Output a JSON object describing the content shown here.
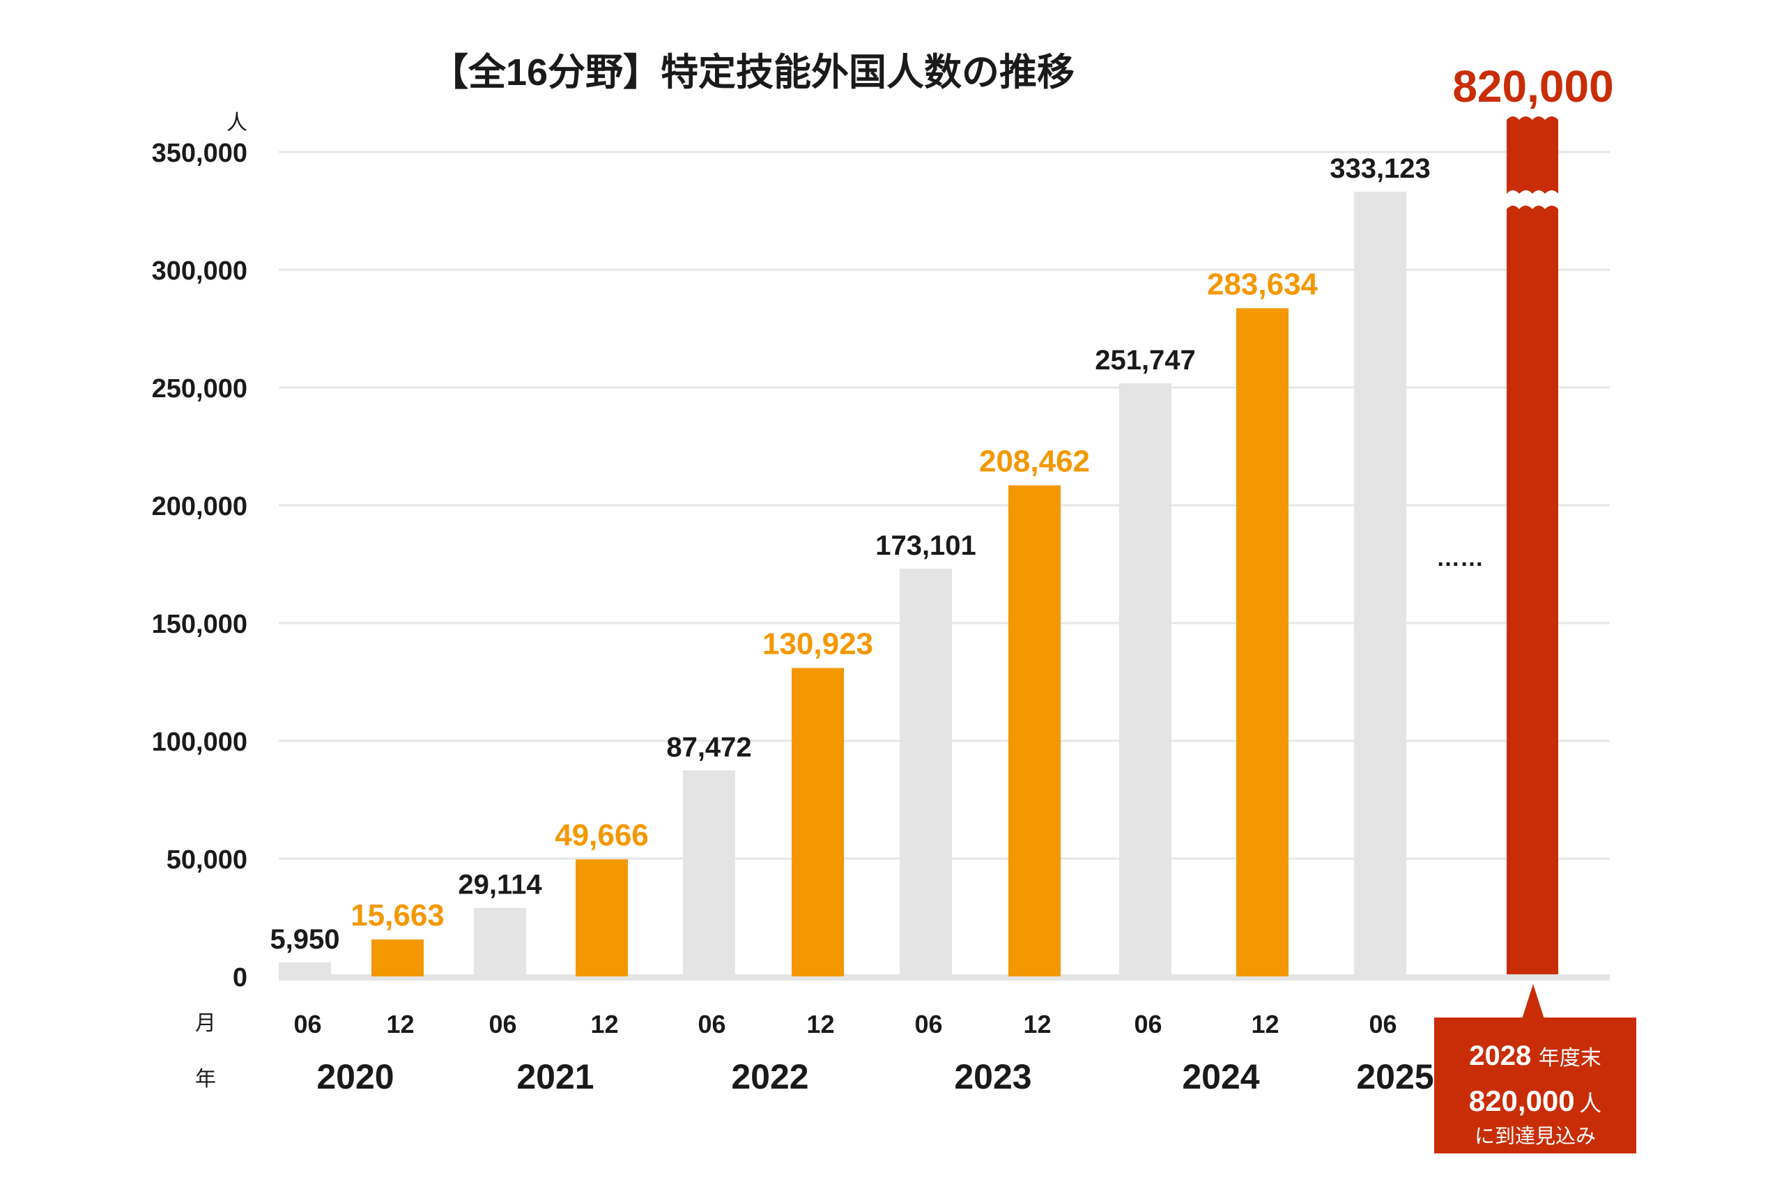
{
  "chart_data": {
    "type": "bar",
    "title": "【全16分野】特定技能外国人数の推移",
    "ylabel": "人",
    "ylim": [
      0,
      350000
    ],
    "yticks": [
      0,
      50000,
      100000,
      150000,
      200000,
      250000,
      300000,
      350000
    ],
    "ytick_labels": [
      "0",
      "50,000",
      "100,000",
      "150,000",
      "200,000",
      "250,000",
      "300,000",
      "350,000"
    ],
    "grid": true,
    "month_axis_label": "月",
    "year_axis_label": "年",
    "categories": [
      "2020-06",
      "2020-12",
      "2021-06",
      "2021-12",
      "2022-06",
      "2022-12",
      "2023-06",
      "2023-12",
      "2024-06",
      "2024-12",
      "2025-06"
    ],
    "months": [
      "06",
      "12",
      "06",
      "12",
      "06",
      "12",
      "06",
      "12",
      "06",
      "12",
      "06"
    ],
    "years": [
      "2020",
      "2021",
      "2022",
      "2023",
      "2024",
      "2025"
    ],
    "values": [
      5950,
      15663,
      29114,
      49666,
      87472,
      130923,
      173101,
      208462,
      251747,
      283634,
      333123
    ],
    "value_labels": [
      "5,950",
      "15,663",
      "29,114",
      "49,666",
      "87,472",
      "130,923",
      "173,101",
      "208,462",
      "251,747",
      "283,634",
      "333,123"
    ],
    "series_colors": {
      "june": "#e4e4e4",
      "december": "#f39800",
      "projection": "#c92d07"
    },
    "label_colors": {
      "june": "#1a1a1a",
      "december": "#f39800"
    },
    "ellipsis": "……",
    "projection": {
      "value": 820000,
      "value_label": "820,000",
      "axis_break": true,
      "callout_line1_year": "2028",
      "callout_line1_suffix": "年度末",
      "callout_line2_value": "820,000",
      "callout_line2_suffix": "人",
      "callout_line3": "に到達見込み"
    }
  }
}
